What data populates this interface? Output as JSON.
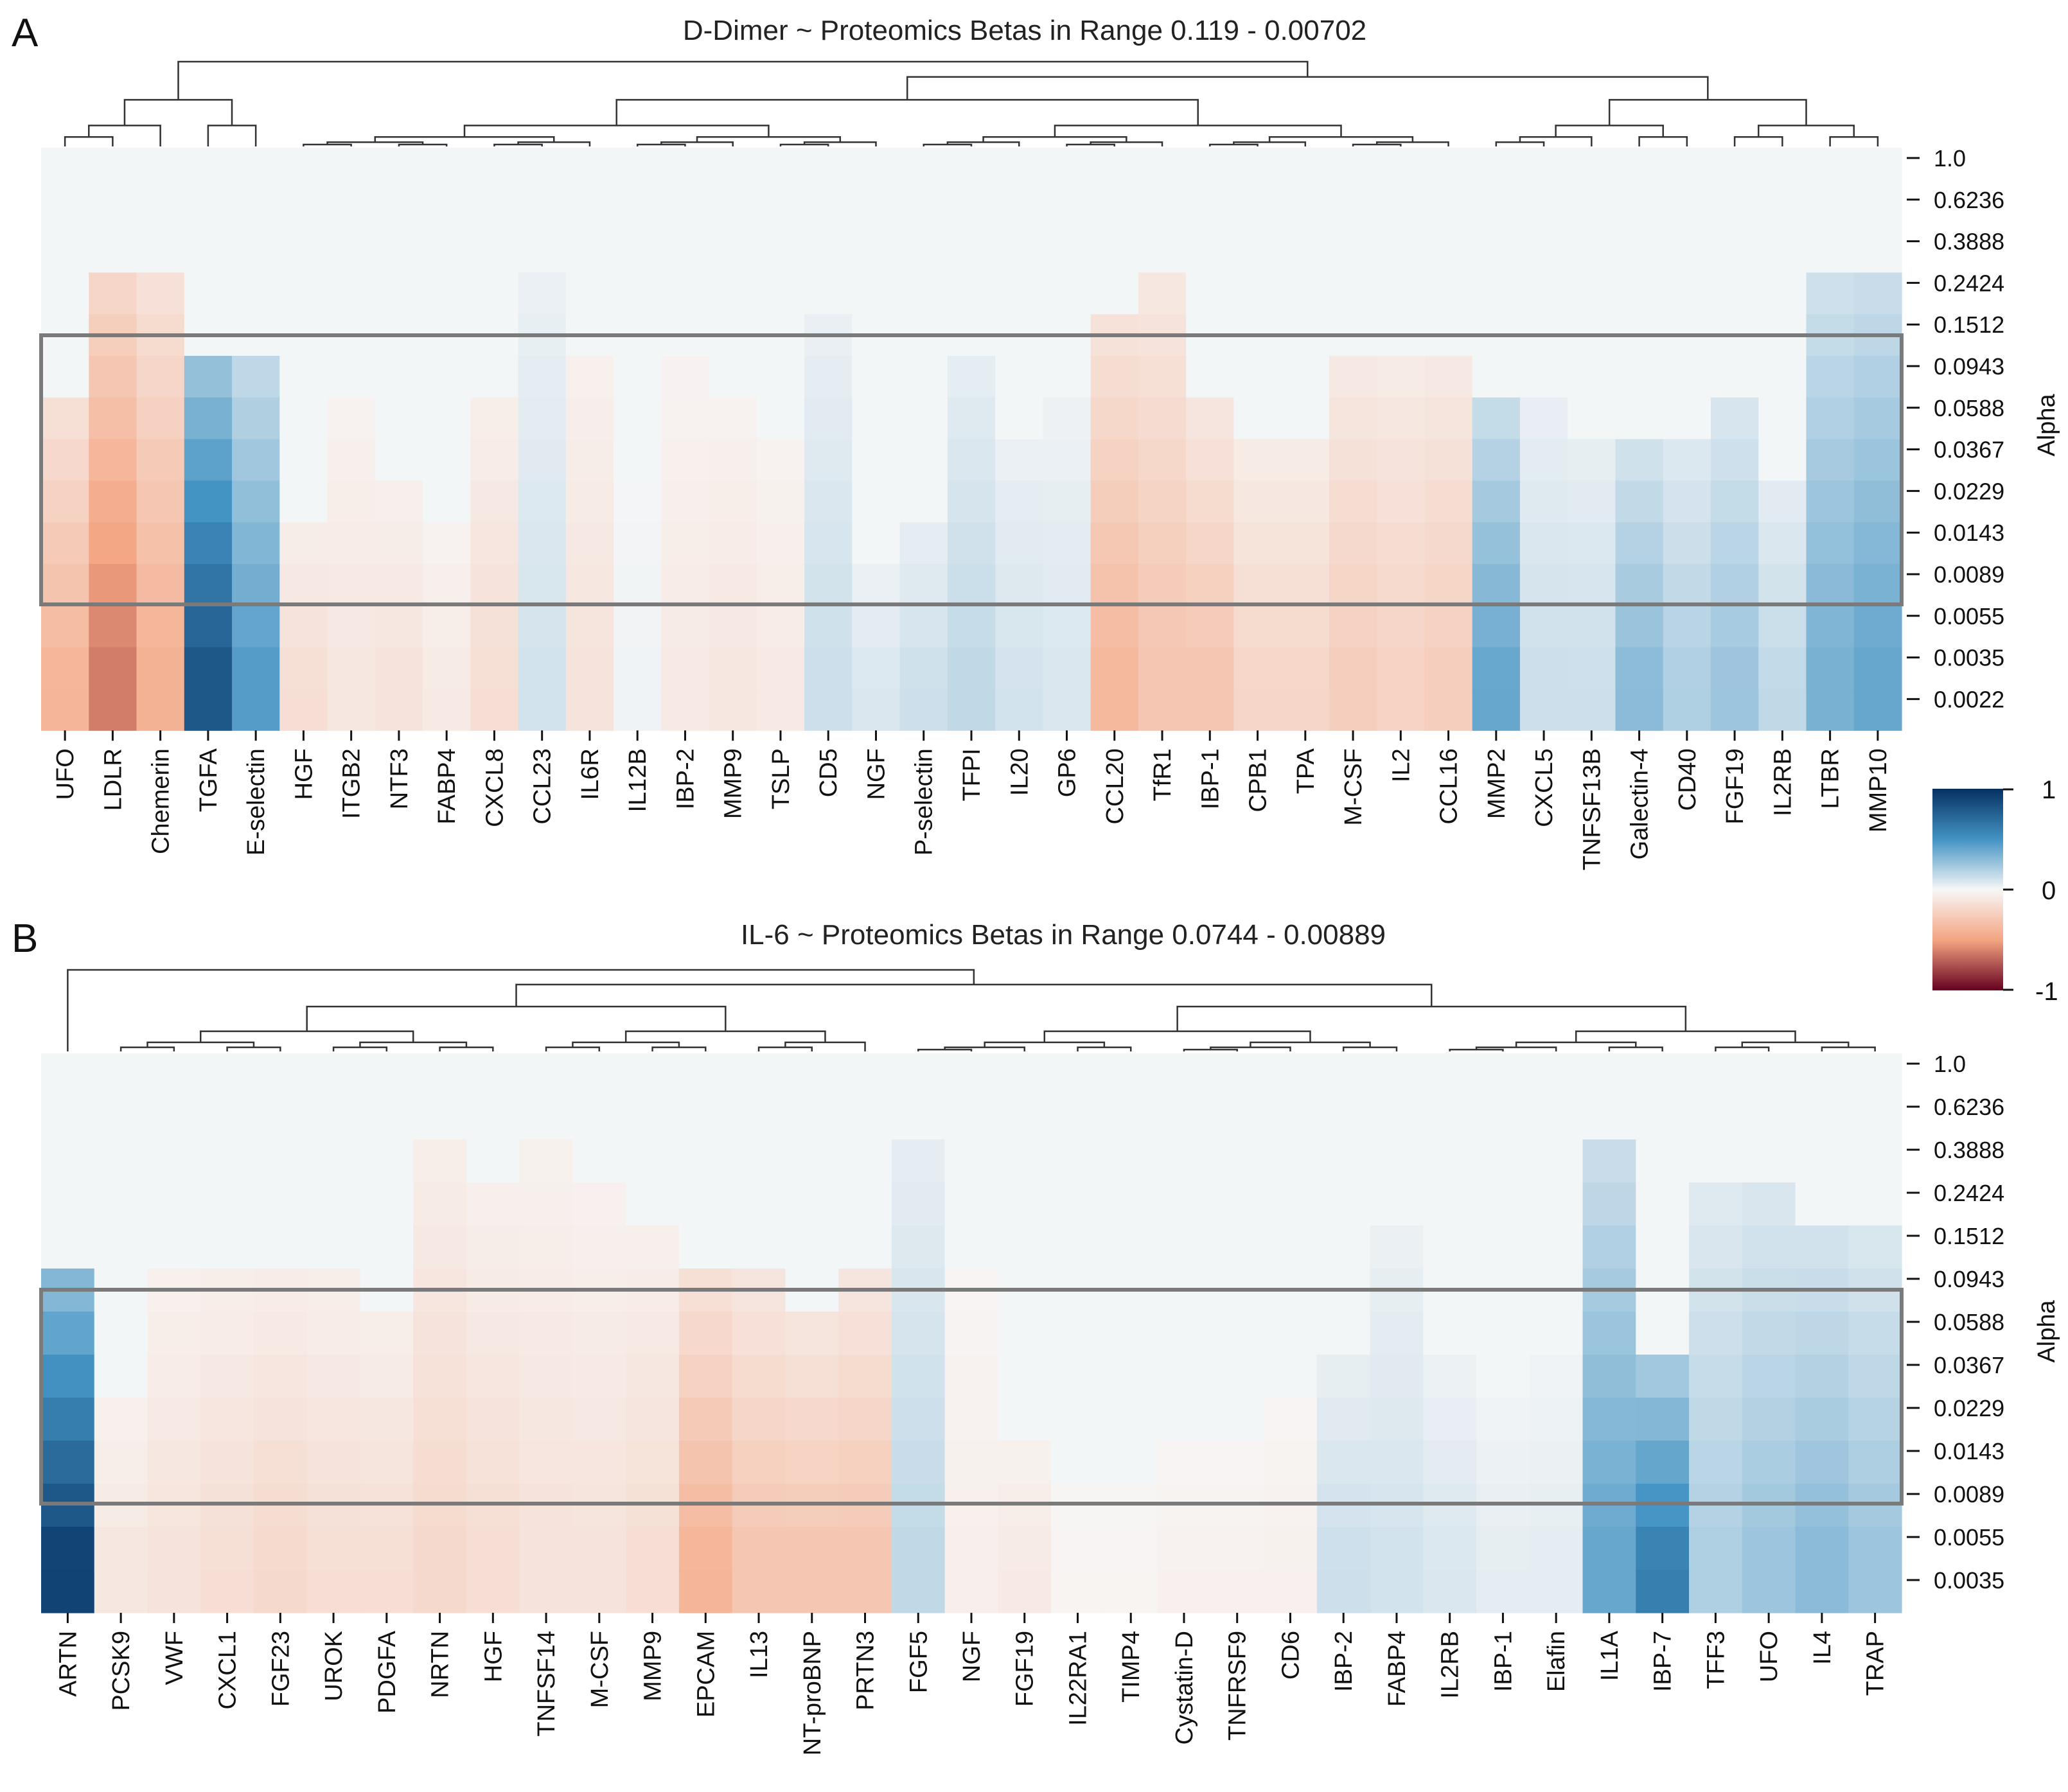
{
  "colorbar": {
    "ticks": [
      "1",
      "0",
      "-1"
    ],
    "colors": {
      "positive": "#053061",
      "mid_pos": "#4393c3",
      "zero": "#f7f7f7",
      "mid_neg": "#f4a582",
      "negative": "#67001f"
    }
  },
  "chart_data": [
    {
      "type": "heatmap",
      "panel_label": "A",
      "title": "D-Dimer ~ Proteomics Betas in Range 0.119 - 0.00702",
      "ylabel": "Alpha",
      "xlabel": "",
      "value_range": [
        -1,
        1
      ],
      "yticks": [
        "1.0",
        "0.6236",
        "0.3888",
        "0.2424",
        "0.1512",
        "0.0943",
        "0.0588",
        "0.0367",
        "0.0229",
        "0.0143",
        "0.0089",
        "0.0055",
        "0.0035",
        "0.0022"
      ],
      "highlight_alpha_range": [
        0.119,
        0.00702
      ],
      "columns": [
        "UFO",
        "LDLR",
        "Chemerin",
        "TGFA",
        "E-selectin",
        "HGF",
        "ITGB2",
        "NTF3",
        "FABP4",
        "CXCL8",
        "CCL23",
        "IL6R",
        "IL12B",
        "IBP-2",
        "MMP9",
        "TSLP",
        "CD5",
        "NGF",
        "P-selectin",
        "TFPI",
        "IL20",
        "GP6",
        "CCL20",
        "TfR1",
        "IBP-1",
        "CPB1",
        "TPA",
        "M-CSF",
        "IL2",
        "CCL16",
        "MMP2",
        "CXCL5",
        "TNFSF13B",
        "Galectin-4",
        "CD40",
        "FGF19",
        "IL2RB",
        "LTBR",
        "MMP10"
      ],
      "peak_beta": [
        -0.4,
        -0.62,
        -0.42,
        0.8,
        0.45,
        -0.15,
        -0.1,
        -0.12,
        -0.08,
        -0.15,
        0.1,
        -0.12,
        0.02,
        -0.08,
        -0.1,
        -0.08,
        0.12,
        0.08,
        0.12,
        0.15,
        0.1,
        0.08,
        -0.38,
        -0.3,
        -0.3,
        -0.2,
        -0.2,
        -0.25,
        -0.22,
        -0.25,
        0.4,
        0.12,
        0.12,
        0.3,
        0.2,
        0.25,
        0.15,
        0.35,
        0.4
      ],
      "onset_row": [
        6,
        3,
        3,
        5,
        5,
        9,
        6,
        8,
        9,
        6,
        3,
        5,
        6,
        5,
        6,
        7,
        4,
        10,
        9,
        5,
        7,
        6,
        4,
        3,
        6,
        7,
        7,
        5,
        5,
        5,
        6,
        6,
        7,
        7,
        7,
        6,
        8,
        3,
        3
      ],
      "dendrogram_splits": [
        {
          "cols": [
            0,
            4
          ],
          "split": 2
        },
        {
          "cols": [
            5,
            29
          ],
          "split": 21
        },
        {
          "cols": [
            30,
            38
          ],
          "split": 36
        }
      ]
    },
    {
      "type": "heatmap",
      "panel_label": "B",
      "title": "IL-6 ~ Proteomics Betas in Range 0.0744 - 0.00889",
      "ylabel": "Alpha",
      "xlabel": "",
      "value_range": [
        -1,
        1
      ],
      "yticks": [
        "1.0",
        "0.6236",
        "0.3888",
        "0.2424",
        "0.1512",
        "0.0943",
        "0.0588",
        "0.0367",
        "0.0229",
        "0.0143",
        "0.0089",
        "0.0055",
        "0.0035"
      ],
      "highlight_alpha_range": [
        0.0744,
        0.00889
      ],
      "columns": [
        "ARTN",
        "PCSK9",
        "VWF",
        "CXCL1",
        "FGF23",
        "UROK",
        "PDGFA",
        "NRTN",
        "HGF",
        "TNFSF14",
        "M-CSF",
        "MMP9",
        "EPCAM",
        "IL13",
        "NT-proBNP",
        "PRTN3",
        "FGF5",
        "NGF",
        "FGF19",
        "IL22RA1",
        "TIMP4",
        "Cystatin-D",
        "TNFRSF9",
        "CD6",
        "IBP-2",
        "FABP4",
        "IL2RB",
        "IBP-1",
        "Elafin",
        "IL1A",
        "IBP-7",
        "TFF3",
        "UFO",
        "IL4",
        "TRAP"
      ],
      "peak_beta": [
        0.9,
        -0.1,
        -0.12,
        -0.15,
        -0.18,
        -0.15,
        -0.15,
        -0.18,
        -0.15,
        -0.12,
        -0.12,
        -0.15,
        -0.4,
        -0.3,
        -0.3,
        -0.3,
        0.15,
        -0.05,
        -0.08,
        -0.02,
        -0.02,
        -0.04,
        -0.04,
        -0.04,
        0.12,
        0.1,
        0.08,
        0.05,
        0.05,
        0.4,
        0.6,
        0.2,
        0.25,
        0.3,
        0.25
      ],
      "onset_row": [
        5,
        8,
        5,
        5,
        5,
        5,
        6,
        2,
        3,
        2,
        3,
        4,
        5,
        5,
        6,
        5,
        2,
        5,
        9,
        9,
        9,
        9,
        9,
        8,
        7,
        4,
        7,
        8,
        7,
        2,
        7,
        3,
        3,
        4,
        4
      ],
      "dendrogram_splits": [
        {
          "cols": [
            0,
            0
          ],
          "split": 0
        },
        {
          "cols": [
            1,
            15
          ],
          "split": 11
        },
        {
          "cols": [
            16,
            34
          ],
          "split": 28
        }
      ]
    }
  ]
}
